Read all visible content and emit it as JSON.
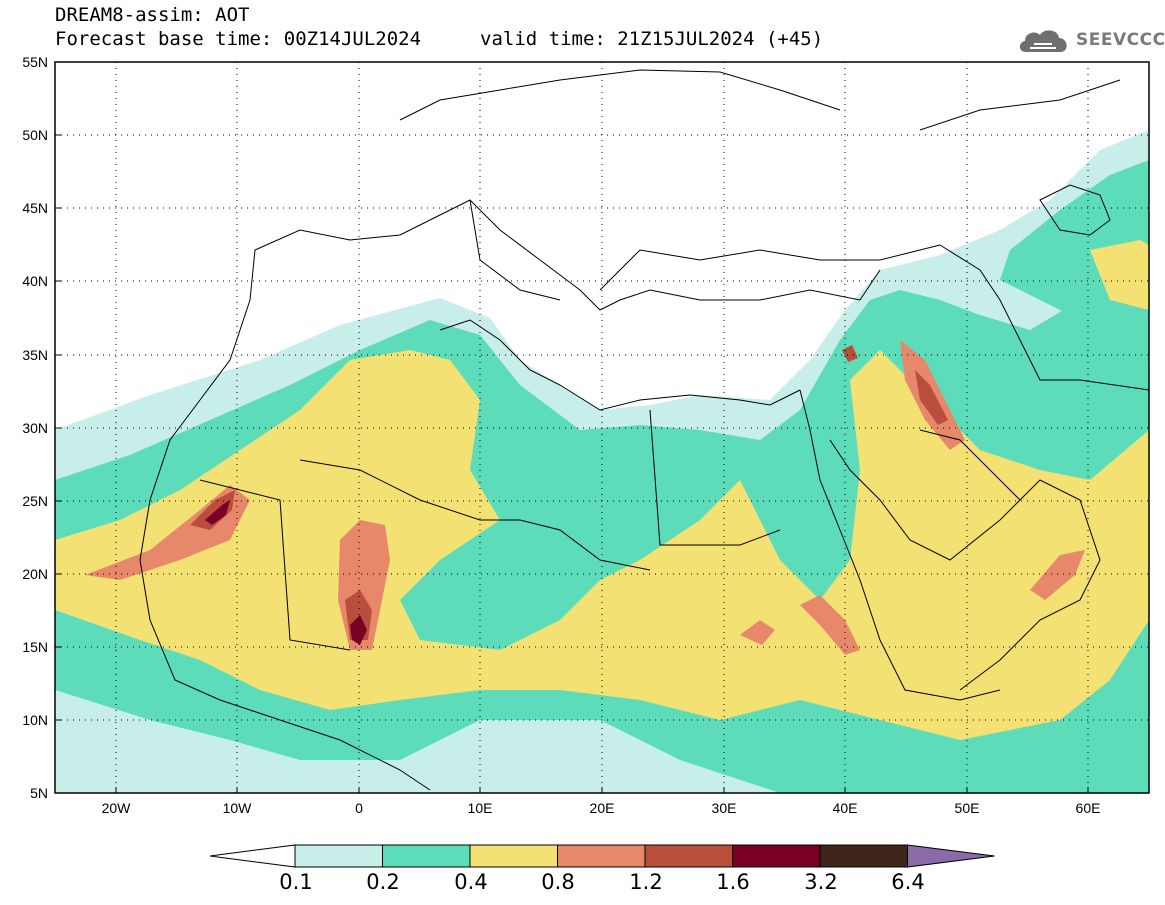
{
  "title": {
    "line1": "DREAM8-assim: AOT",
    "line2": "Forecast base time: 00Z14JUL2024",
    "valid": "valid time: 21Z15JUL2024 (+45)"
  },
  "logo": {
    "text": "SEEVCCC",
    "icon": "cloud-icon"
  },
  "axes": {
    "lat_ticks": [
      "55N",
      "50N",
      "45N",
      "40N",
      "35N",
      "30N",
      "25N",
      "20N",
      "15N",
      "10N",
      "5N"
    ],
    "lon_ticks": [
      "20W",
      "10W",
      "0",
      "10E",
      "20E",
      "30E",
      "40E",
      "50E",
      "60E"
    ],
    "lon_range": [
      -25,
      65
    ],
    "lat_range": [
      5,
      55
    ],
    "grid": "dotted"
  },
  "colorbar": {
    "labels": [
      "0.1",
      "0.2",
      "0.4",
      "0.8",
      "1.2",
      "1.6",
      "3.2",
      "6.4"
    ],
    "colors": [
      "#ffffff",
      "#c8eee9",
      "#5ddcb9",
      "#f4e173",
      "#e8886a",
      "#b94e3c",
      "#7a0025",
      "#3f2419",
      "#8b6ba7"
    ]
  },
  "map_layers": {
    "coastline_color": "#000000",
    "background": "#ffffff"
  }
}
